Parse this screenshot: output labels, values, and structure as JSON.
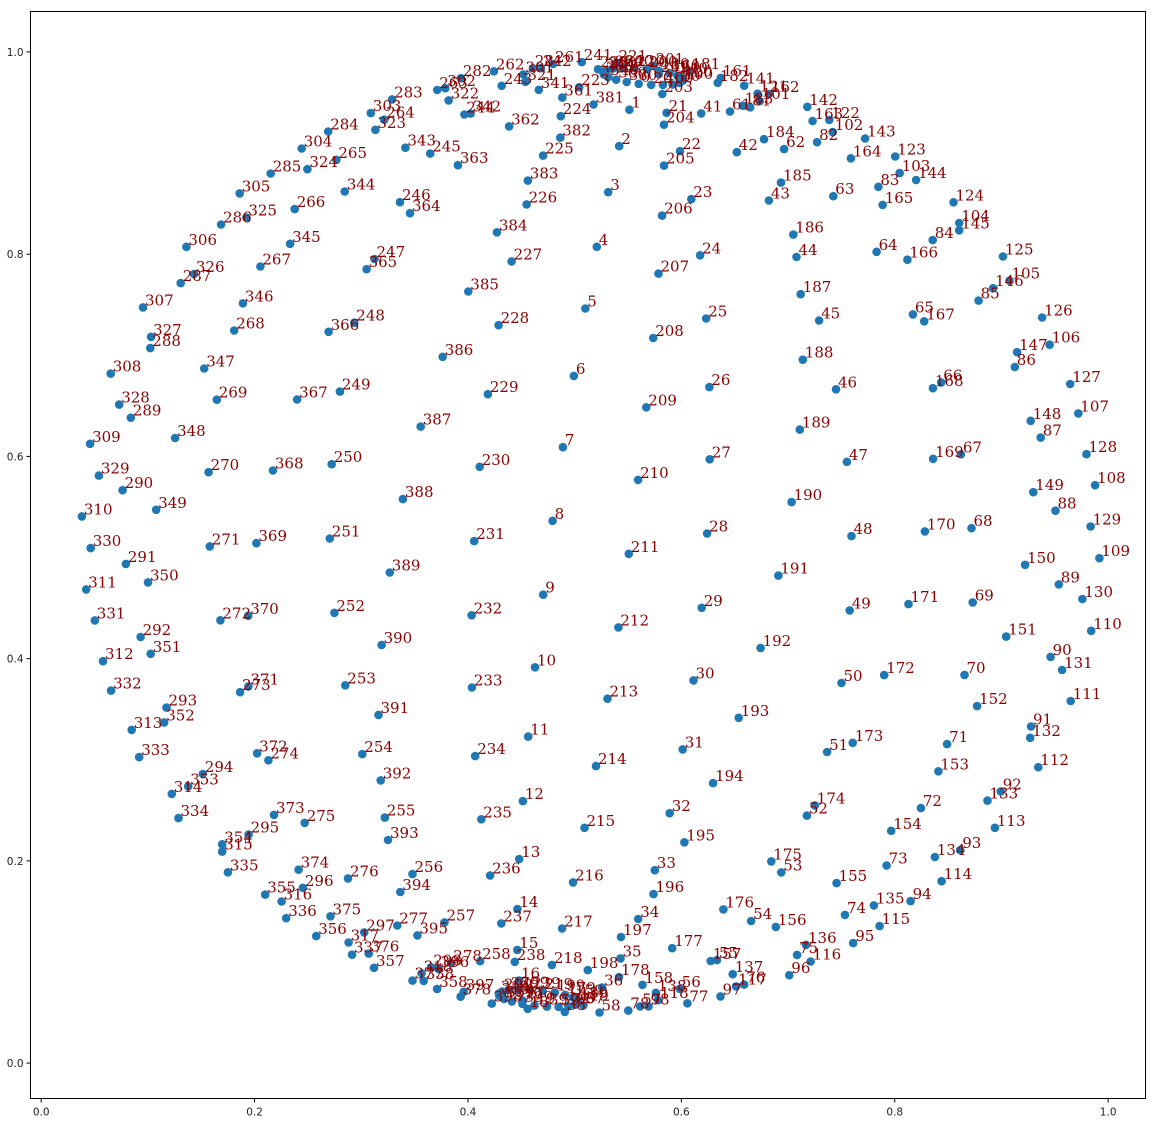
{
  "chart_data": {
    "type": "scatter",
    "title": "",
    "xlabel": "",
    "ylabel": "",
    "xlim": [
      -0.01,
      1.035
    ],
    "ylim": [
      -0.035,
      1.04
    ],
    "xticks": [
      "0.0",
      "0.2",
      "0.4",
      "0.6",
      "0.8",
      "1.0"
    ],
    "yticks": [
      "0.0",
      "0.2",
      "0.4",
      "0.6",
      "0.8",
      "1.0"
    ],
    "grid": false,
    "legend": "none",
    "point_color": "#1f77b4",
    "label_color": "#8b0000",
    "rings": [
      {
        "base": 0,
        "count": 20,
        "radius": 0.492,
        "start_deg": 100
      },
      {
        "base": 20,
        "count": 20,
        "radius": 0.451,
        "start_deg": 80
      },
      {
        "base": 40,
        "count": 20,
        "radius": 0.433,
        "start_deg": 60
      },
      {
        "base": 60,
        "count": 20,
        "radius": 0.42,
        "start_deg": 40
      }
    ],
    "layers": [
      {
        "offset": 0,
        "z": 1.0
      },
      {
        "offset": 400,
        "z": 0.95
      }
    ],
    "view_rotation_deg": 8,
    "center": [
      0.52,
      0.52
    ],
    "meridians": 20,
    "parallels": 20,
    "first_label": 0,
    "last_label": 399,
    "extra_labels": [
      "180",
      "200",
      "220",
      "240",
      "260",
      "280",
      "300",
      "320",
      "340",
      "360",
      "380",
      "160",
      "140",
      "120",
      "100",
      "80",
      "60",
      "40",
      "20",
      "0"
    ]
  }
}
